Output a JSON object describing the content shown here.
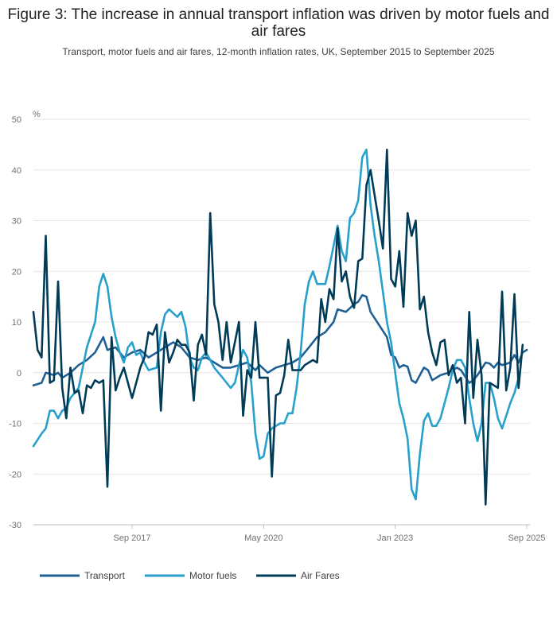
{
  "chart_data": {
    "type": "line",
    "title": "Figure 3: The increase in annual transport inflation was driven by motor fuels and air fares",
    "subtitle": "Transport, motor fuels and air fares, 12-month inflation rates, UK, September 2015 to September 2025",
    "ylabel": "%",
    "xlabel": "",
    "ylim": [
      -30,
      50
    ],
    "yticks": [
      50,
      40,
      30,
      20,
      10,
      0,
      -10,
      -20,
      -30
    ],
    "xlim_months": [
      0,
      120
    ],
    "xticks": [
      {
        "label": "Sep 2017",
        "month": 24
      },
      {
        "label": "May 2020",
        "month": 56
      },
      {
        "label": "Jan 2023",
        "month": 88
      },
      {
        "label": "Sep 2025",
        "month": 120
      }
    ],
    "grid": true,
    "legend_position": "bottom-left",
    "series": [
      {
        "name": "Transport",
        "color": "#206095",
        "points": [
          [
            0,
            -2.5
          ],
          [
            2,
            -2
          ],
          [
            3,
            0
          ],
          [
            5,
            -0.5
          ],
          [
            6,
            0
          ],
          [
            7,
            -1
          ],
          [
            9,
            0
          ],
          [
            11,
            1.5
          ],
          [
            13,
            2.5
          ],
          [
            15,
            4
          ],
          [
            17,
            7
          ],
          [
            18,
            4.5
          ],
          [
            20,
            5
          ],
          [
            22,
            3
          ],
          [
            24,
            4
          ],
          [
            26,
            4.5
          ],
          [
            28,
            3
          ],
          [
            30,
            4
          ],
          [
            32,
            5
          ],
          [
            34,
            6
          ],
          [
            36,
            5
          ],
          [
            38,
            3
          ],
          [
            40,
            2.5
          ],
          [
            42,
            3
          ],
          [
            44,
            2
          ],
          [
            46,
            1
          ],
          [
            48,
            1
          ],
          [
            50,
            1.5
          ],
          [
            52,
            2
          ],
          [
            54,
            0.5
          ],
          [
            55,
            1.5
          ],
          [
            57,
            0
          ],
          [
            59,
            1
          ],
          [
            61,
            1.5
          ],
          [
            63,
            2
          ],
          [
            65,
            3
          ],
          [
            67,
            5
          ],
          [
            69,
            7
          ],
          [
            71,
            8
          ],
          [
            73,
            10
          ],
          [
            74,
            12.5
          ],
          [
            76,
            12
          ],
          [
            78,
            13.5
          ],
          [
            79,
            14
          ],
          [
            80,
            15.3
          ],
          [
            81,
            15
          ],
          [
            82,
            12
          ],
          [
            84,
            9.5
          ],
          [
            86,
            7
          ],
          [
            87,
            3.5
          ],
          [
            88,
            3
          ],
          [
            89,
            1
          ],
          [
            90,
            1.5
          ],
          [
            91,
            1.2
          ],
          [
            92,
            -1.5
          ],
          [
            93,
            -2
          ],
          [
            95,
            1
          ],
          [
            96,
            0.5
          ],
          [
            97,
            -1.5
          ],
          [
            98,
            -1
          ],
          [
            99,
            -0.5
          ],
          [
            101,
            0
          ],
          [
            103,
            1
          ],
          [
            104,
            0.5
          ],
          [
            106,
            -2
          ],
          [
            107,
            -1.5
          ],
          [
            108,
            -0.5
          ],
          [
            110,
            2
          ],
          [
            111,
            1.8
          ],
          [
            112,
            1
          ],
          [
            113,
            2
          ],
          [
            114,
            1.5
          ],
          [
            116,
            2
          ],
          [
            117,
            3.5
          ],
          [
            118,
            2
          ],
          [
            119,
            4
          ],
          [
            120,
            4.5
          ]
        ]
      },
      {
        "name": "Motor fuels",
        "color": "#27a0cc",
        "points": [
          [
            0,
            -14.5
          ],
          [
            2,
            -12
          ],
          [
            3,
            -11
          ],
          [
            4,
            -7.5
          ],
          [
            5,
            -7.5
          ],
          [
            6,
            -9
          ],
          [
            7,
            -7.5
          ],
          [
            8,
            -7
          ],
          [
            9,
            -5
          ],
          [
            11,
            -3
          ],
          [
            12,
            1
          ],
          [
            13,
            5
          ],
          [
            15,
            10
          ],
          [
            16,
            17
          ],
          [
            17,
            19.5
          ],
          [
            18,
            17
          ],
          [
            19,
            11
          ],
          [
            20,
            7
          ],
          [
            21,
            4
          ],
          [
            22,
            2
          ],
          [
            23,
            5
          ],
          [
            24,
            6
          ],
          [
            25,
            3.5
          ],
          [
            26,
            4
          ],
          [
            27,
            2
          ],
          [
            28,
            0.5
          ],
          [
            30,
            1
          ],
          [
            31,
            8
          ],
          [
            32,
            11.5
          ],
          [
            33,
            12.5
          ],
          [
            35,
            11
          ],
          [
            36,
            12
          ],
          [
            37,
            9
          ],
          [
            38,
            3
          ],
          [
            39,
            1
          ],
          [
            40,
            0.5
          ],
          [
            41,
            3
          ],
          [
            42,
            4
          ],
          [
            43,
            2.5
          ],
          [
            44,
            1
          ],
          [
            45,
            0
          ],
          [
            46,
            -1
          ],
          [
            47,
            -2
          ],
          [
            48,
            -3
          ],
          [
            49,
            -2
          ],
          [
            50,
            1.5
          ],
          [
            51,
            4.5
          ],
          [
            52,
            3
          ],
          [
            53,
            -2
          ],
          [
            54,
            -12
          ],
          [
            55,
            -17
          ],
          [
            56,
            -16.5
          ],
          [
            57,
            -12
          ],
          [
            58,
            -11
          ],
          [
            59,
            -10.5
          ],
          [
            60,
            -10
          ],
          [
            61,
            -10
          ],
          [
            62,
            -8
          ],
          [
            63,
            -8
          ],
          [
            64,
            -3
          ],
          [
            65,
            4
          ],
          [
            66,
            13.5
          ],
          [
            67,
            18
          ],
          [
            68,
            20
          ],
          [
            69,
            17.5
          ],
          [
            71,
            17.5
          ],
          [
            72,
            21
          ],
          [
            73,
            25
          ],
          [
            74,
            29
          ],
          [
            75,
            24
          ],
          [
            76,
            22
          ],
          [
            77,
            30.5
          ],
          [
            78,
            31.5
          ],
          [
            79,
            34
          ],
          [
            80,
            42.5
          ],
          [
            81,
            44
          ],
          [
            82,
            33
          ],
          [
            83,
            27
          ],
          [
            84,
            22
          ],
          [
            85,
            16
          ],
          [
            86,
            10
          ],
          [
            87,
            6
          ],
          [
            88,
            0
          ],
          [
            89,
            -6
          ],
          [
            90,
            -9
          ],
          [
            91,
            -13
          ],
          [
            92,
            -23
          ],
          [
            93,
            -25
          ],
          [
            94,
            -16
          ],
          [
            95,
            -9.5
          ],
          [
            96,
            -8
          ],
          [
            97,
            -10.5
          ],
          [
            98,
            -10.5
          ],
          [
            99,
            -9
          ],
          [
            100,
            -6
          ],
          [
            101,
            -3
          ],
          [
            102,
            0.5
          ],
          [
            103,
            2.5
          ],
          [
            104,
            2.5
          ],
          [
            105,
            1
          ],
          [
            106,
            -5
          ],
          [
            107,
            -10
          ],
          [
            108,
            -13.5
          ],
          [
            109,
            -10
          ],
          [
            110,
            -2
          ],
          [
            111,
            -2
          ],
          [
            112,
            -5
          ],
          [
            113,
            -9
          ],
          [
            114,
            -11
          ],
          [
            115,
            -8.5
          ],
          [
            116,
            -6
          ],
          [
            117,
            -4
          ],
          [
            118,
            -1
          ]
        ]
      },
      {
        "name": "Air Fares",
        "color": "#003c57",
        "points": [
          [
            0,
            12
          ],
          [
            1,
            4.5
          ],
          [
            2,
            3
          ],
          [
            3,
            27
          ],
          [
            4,
            -2
          ],
          [
            5,
            -1.5
          ],
          [
            6,
            18
          ],
          [
            7,
            -3
          ],
          [
            8,
            -9
          ],
          [
            9,
            1
          ],
          [
            10,
            -4
          ],
          [
            11,
            -3.5
          ],
          [
            12,
            -8
          ],
          [
            13,
            -2.5
          ],
          [
            14,
            -3
          ],
          [
            15,
            -1.5
          ],
          [
            16,
            -2
          ],
          [
            17,
            -1.5
          ],
          [
            18,
            -22.5
          ],
          [
            19,
            7
          ],
          [
            20,
            -3.5
          ],
          [
            21,
            -1
          ],
          [
            22,
            1
          ],
          [
            23,
            -2
          ],
          [
            24,
            -5
          ],
          [
            25,
            -2
          ],
          [
            26,
            1
          ],
          [
            27,
            3
          ],
          [
            28,
            8
          ],
          [
            29,
            7.5
          ],
          [
            30,
            9.5
          ],
          [
            31,
            -7.5
          ],
          [
            32,
            8
          ],
          [
            33,
            2
          ],
          [
            34,
            4
          ],
          [
            35,
            6.5
          ],
          [
            36,
            5.5
          ],
          [
            37,
            5.5
          ],
          [
            38,
            4
          ],
          [
            39,
            -5.5
          ],
          [
            40,
            5.5
          ],
          [
            41,
            7.5
          ],
          [
            42,
            3.5
          ],
          [
            43,
            31.5
          ],
          [
            44,
            13.5
          ],
          [
            45,
            10
          ],
          [
            46,
            2.5
          ],
          [
            47,
            10
          ],
          [
            48,
            2
          ],
          [
            49,
            6
          ],
          [
            50,
            10
          ],
          [
            51,
            -8.5
          ],
          [
            52,
            0.5
          ],
          [
            53,
            -1
          ],
          [
            54,
            10
          ],
          [
            55,
            -1
          ],
          [
            56,
            -1
          ],
          [
            57,
            -1
          ],
          [
            58,
            -20.5
          ],
          [
            59,
            -4.5
          ],
          [
            60,
            -4
          ],
          [
            61,
            -0.5
          ],
          [
            62,
            6.5
          ],
          [
            63,
            0.5
          ],
          [
            64,
            0.5
          ],
          [
            65,
            0.5
          ],
          [
            66,
            1.5
          ],
          [
            67,
            2
          ],
          [
            68,
            2.5
          ],
          [
            69,
            2
          ],
          [
            70,
            14.5
          ],
          [
            71,
            10
          ],
          [
            72,
            16.5
          ],
          [
            73,
            14.5
          ],
          [
            74,
            28.5
          ],
          [
            75,
            18
          ],
          [
            76,
            20
          ],
          [
            77,
            15
          ],
          [
            78,
            12.8
          ],
          [
            79,
            22
          ],
          [
            80,
            22.5
          ],
          [
            81,
            37
          ],
          [
            82,
            40
          ],
          [
            83,
            35
          ],
          [
            84,
            30
          ],
          [
            85,
            24.5
          ],
          [
            86,
            44
          ],
          [
            87,
            18.5
          ],
          [
            88,
            17
          ],
          [
            89,
            24
          ],
          [
            90,
            13
          ],
          [
            91,
            31.5
          ],
          [
            92,
            27
          ],
          [
            93,
            30
          ],
          [
            94,
            12.5
          ],
          [
            95,
            15
          ],
          [
            96,
            8
          ],
          [
            97,
            4
          ],
          [
            98,
            1.5
          ],
          [
            99,
            6
          ],
          [
            100,
            6.5
          ],
          [
            101,
            -0.5
          ],
          [
            102,
            1.5
          ],
          [
            103,
            -2
          ],
          [
            104,
            -1
          ],
          [
            105,
            -10
          ],
          [
            106,
            12
          ],
          [
            107,
            -5
          ],
          [
            108,
            6.5
          ],
          [
            109,
            -0.5
          ],
          [
            110,
            -26
          ],
          [
            111,
            -2
          ],
          [
            112,
            -2.5
          ],
          [
            113,
            -3
          ],
          [
            114,
            16
          ],
          [
            115,
            -3.5
          ],
          [
            116,
            1
          ],
          [
            117,
            15.5
          ],
          [
            118,
            -3
          ],
          [
            119,
            5.5
          ]
        ]
      }
    ]
  }
}
